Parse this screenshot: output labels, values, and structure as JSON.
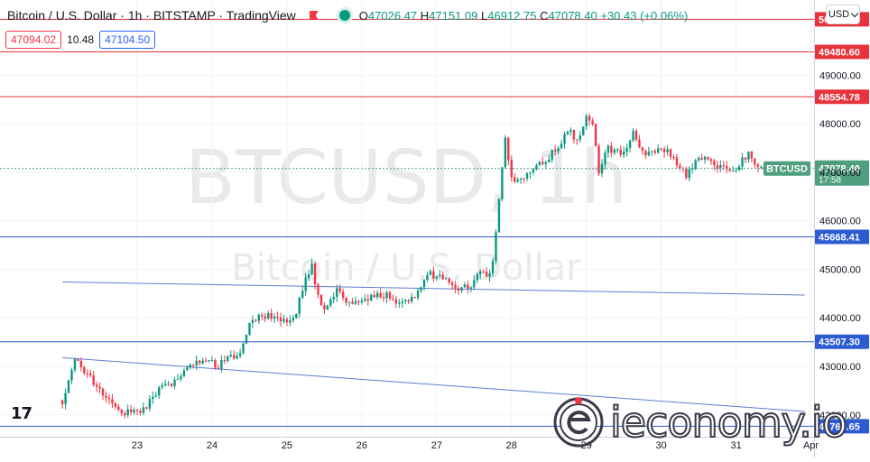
{
  "legend": {
    "title": "Bitcoin / U.S. Dollar · 1h · BITSTAMP · TradingView",
    "ohlc": [
      {
        "label": "O",
        "value": "47026.47"
      },
      {
        "label": "H",
        "value": "47151.09"
      },
      {
        "label": "L",
        "value": "46912.75"
      },
      {
        "label": "C",
        "value": "47078.40"
      }
    ],
    "change": "+30.43 (+0.06%)"
  },
  "quote": {
    "sell": "47094.02",
    "spread": "10.48",
    "buy": "47104.50"
  },
  "currency_button": "USD",
  "watermark": {
    "symbol": "BTCUSD, 1h",
    "name": "Bitcoin / U.S. Dollar"
  },
  "tv_logo": "17",
  "site_logo": "ieconomy.io",
  "colors": {
    "up": "#089981",
    "down": "#f23645",
    "resistance": "#e8323c",
    "support": "#2d5bd1",
    "trend": "#5a7fd6",
    "last_price": "#4f9e7f"
  },
  "chart_data": {
    "type": "candlestick",
    "interval": "1h",
    "ylim": [
      41550,
      50550
    ],
    "y_ticks": [
      42000,
      43000,
      44000,
      45000,
      46000,
      47000,
      48000,
      49000
    ],
    "y_tick_labels": [
      "42000.00",
      "43000.00",
      "44000.00",
      "45000.00",
      "46000.00",
      "47000.00",
      "48000.00",
      "49000.00"
    ],
    "x_ticks": [
      {
        "label": "23",
        "t": 24
      },
      {
        "label": "24",
        "t": 48
      },
      {
        "label": "25",
        "t": 72
      },
      {
        "label": "26",
        "t": 96
      },
      {
        "label": "27",
        "t": 120
      },
      {
        "label": "28",
        "t": 144
      },
      {
        "label": "29",
        "t": 168
      },
      {
        "label": "30",
        "t": 192
      },
      {
        "label": "31",
        "t": 216
      },
      {
        "label": "Apr",
        "t": 240
      }
    ],
    "horizontal_levels": [
      {
        "value": 50153.13,
        "label": "50153.13",
        "kind": "resistance"
      },
      {
        "value": 49480.6,
        "label": "49480.60",
        "kind": "resistance"
      },
      {
        "value": 48554.78,
        "label": "48554.78",
        "kind": "resistance"
      },
      {
        "value": 45668.41,
        "label": "45668.41",
        "kind": "support"
      },
      {
        "value": 43507.3,
        "label": "43507.30",
        "kind": "support"
      },
      {
        "value": 41765.65,
        "label": "41765.65",
        "kind": "support"
      }
    ],
    "trend_lines": [
      {
        "t1": 0,
        "v1": 44740,
        "t2": 238,
        "v2": 44470
      },
      {
        "t1": 0,
        "v1": 43180,
        "t2": 238,
        "v2": 42070
      }
    ],
    "last_price": {
      "value": 47078.4,
      "label": "47078.40",
      "symbol": "BTCUSD",
      "countdown": "17:58"
    },
    "candle_keyframes": [
      [
        0,
        42300
      ],
      [
        4,
        43150
      ],
      [
        9,
        42750
      ],
      [
        14,
        42350
      ],
      [
        20,
        42050
      ],
      [
        26,
        42100
      ],
      [
        31,
        42550
      ],
      [
        37,
        42700
      ],
      [
        41,
        43000
      ],
      [
        46,
        43150
      ],
      [
        50,
        43000
      ],
      [
        53,
        43250
      ],
      [
        57,
        43200
      ],
      [
        60,
        43950
      ],
      [
        64,
        44050
      ],
      [
        68,
        44000
      ],
      [
        72,
        43950
      ],
      [
        75,
        44100
      ],
      [
        78,
        44900
      ],
      [
        80,
        45050
      ],
      [
        82,
        44400
      ],
      [
        84,
        44100
      ],
      [
        88,
        44550
      ],
      [
        92,
        44250
      ],
      [
        97,
        44400
      ],
      [
        102,
        44500
      ],
      [
        108,
        44350
      ],
      [
        113,
        44450
      ],
      [
        118,
        44900
      ],
      [
        123,
        44800
      ],
      [
        127,
        44600
      ],
      [
        131,
        44700
      ],
      [
        135,
        44950
      ],
      [
        137,
        44850
      ],
      [
        138,
        45100
      ],
      [
        140,
        46450
      ],
      [
        142,
        47700
      ],
      [
        144,
        46900
      ],
      [
        147,
        46850
      ],
      [
        152,
        47100
      ],
      [
        158,
        47450
      ],
      [
        162,
        47850
      ],
      [
        165,
        47700
      ],
      [
        168,
        48100
      ],
      [
        170,
        48050
      ],
      [
        172,
        47000
      ],
      [
        175,
        47500
      ],
      [
        180,
        47400
      ],
      [
        183,
        47800
      ],
      [
        187,
        47300
      ],
      [
        192,
        47550
      ],
      [
        196,
        47300
      ],
      [
        200,
        46900
      ],
      [
        204,
        47300
      ],
      [
        208,
        47200
      ],
      [
        212,
        47100
      ],
      [
        216,
        47050
      ],
      [
        220,
        47400
      ],
      [
        223,
        47150
      ],
      [
        226,
        47078.4
      ]
    ]
  }
}
